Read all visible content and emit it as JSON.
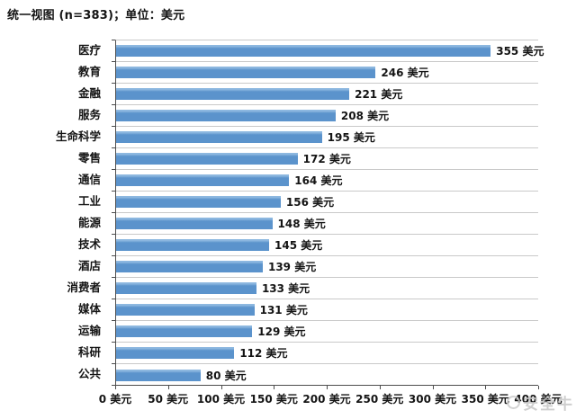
{
  "page": {
    "title": "统一视图 (n=383)；单位：美元"
  },
  "chart_data": {
    "type": "bar",
    "orientation": "horizontal",
    "title": "统一视图 (n=383)；单位：美元",
    "categories": [
      "医疗",
      "教育",
      "金融",
      "服务",
      "生命科学",
      "零售",
      "通信",
      "工业",
      "能源",
      "技术",
      "酒店",
      "消费者",
      "媒体",
      "运输",
      "科研",
      "公共"
    ],
    "values": [
      355,
      246,
      221,
      208,
      195,
      172,
      164,
      156,
      148,
      145,
      139,
      133,
      131,
      129,
      112,
      80
    ],
    "value_labels": [
      "355 美元",
      "246 美元",
      "221 美元",
      "208 美元",
      "195 美元",
      "172 美元",
      "164 美元",
      "156 美元",
      "148 美元",
      "145 美元",
      "139 美元",
      "133 美元",
      "131 美元",
      "129 美元",
      "112 美元",
      "80 美元"
    ],
    "unit": "美元",
    "xlabel": "",
    "ylabel": "",
    "xlim": [
      0,
      400
    ],
    "x_ticks": [
      0,
      50,
      100,
      150,
      200,
      250,
      300,
      350,
      400
    ],
    "x_tick_labels": [
      "0 美元",
      "50 美元",
      "100 美元",
      "150 美元",
      "200 美元",
      "250 美元",
      "300 美元",
      "350 美元",
      "400 美元"
    ],
    "grid": true,
    "legend": "none",
    "bar_color": "#5b93cc",
    "gridline_color": "#c9c9c9",
    "axis_color": "#4d4d4d",
    "label_color": "#141414"
  },
  "watermark": {
    "text": "安全牛",
    "color": "#c7c7c7"
  }
}
